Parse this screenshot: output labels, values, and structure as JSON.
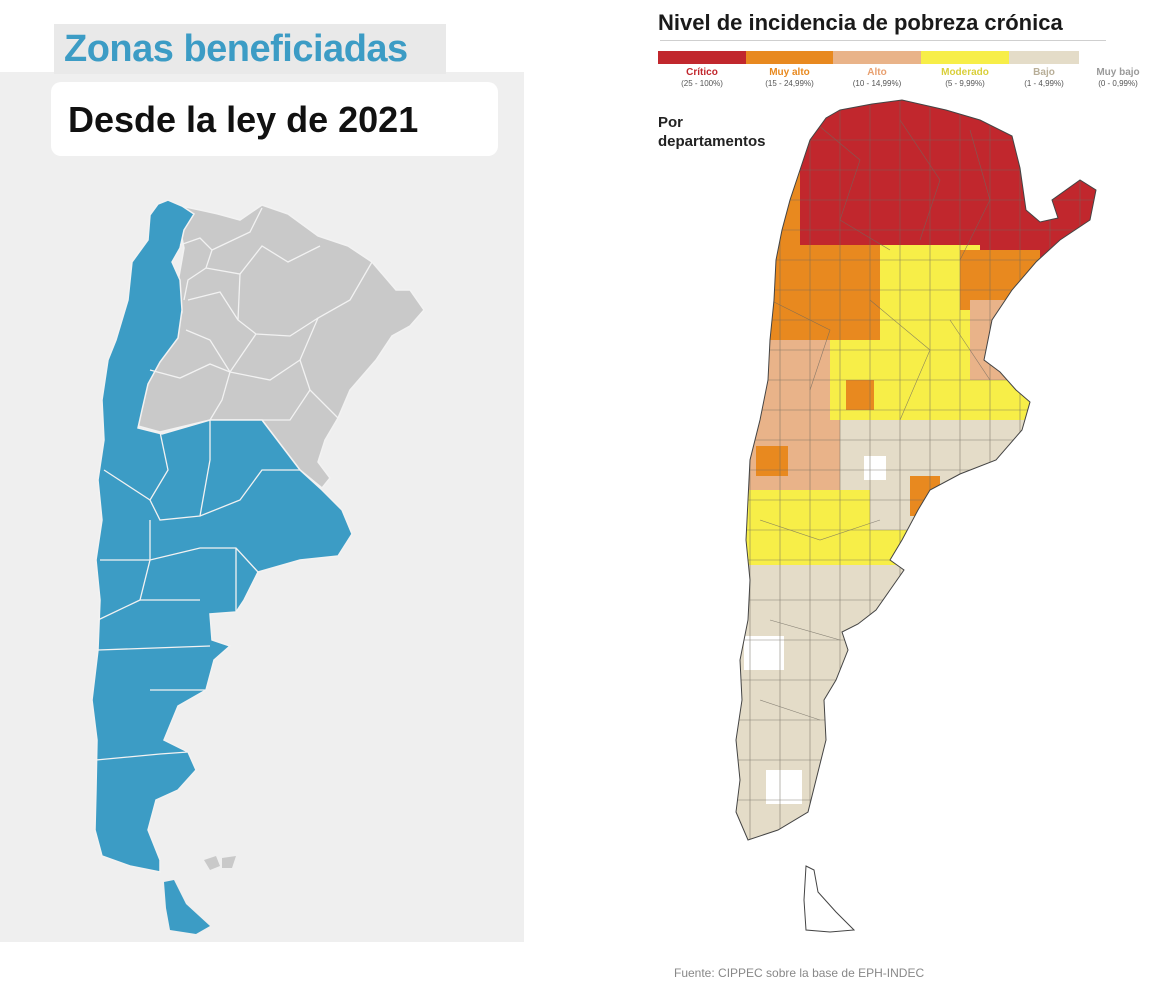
{
  "left": {
    "title": "Zonas beneficiadas",
    "subtitle": "Desde la ley de 2021",
    "colors": {
      "benefited": "#3c9cc5",
      "not_benefited": "#c9c9c9",
      "border": "#f2f2f2",
      "background": "#efefef"
    }
  },
  "right": {
    "title": "Nivel de incidencia de pobreza crónica",
    "caption_line1": "Por",
    "caption_line2": "departamentos",
    "legend": [
      {
        "label": "Crítico",
        "range": "(25 - 100%)",
        "color": "#c1272d",
        "text_color": "#c1272d"
      },
      {
        "label": "Muy alto",
        "range": "(15 - 24,99%)",
        "color": "#e8891f",
        "text_color": "#e8891f"
      },
      {
        "label": "Alto",
        "range": "(10 - 14,99%)",
        "color": "#e9b389",
        "text_color": "#e8a070"
      },
      {
        "label": "Moderado",
        "range": "(5 - 9,99%)",
        "color": "#f7ee48",
        "text_color": "#d9cf3a"
      },
      {
        "label": "Bajo",
        "range": "(1 - 4,99%)",
        "color": "#e4dcc8",
        "text_color": "#b8ae98"
      },
      {
        "label": "Muy bajo",
        "range": "(0 - 0,99%)",
        "color": "#ffffff",
        "text_color": "#9a9a9a"
      }
    ],
    "source": "Fuente: CIPPEC sobre la base de EPH-INDEC"
  }
}
